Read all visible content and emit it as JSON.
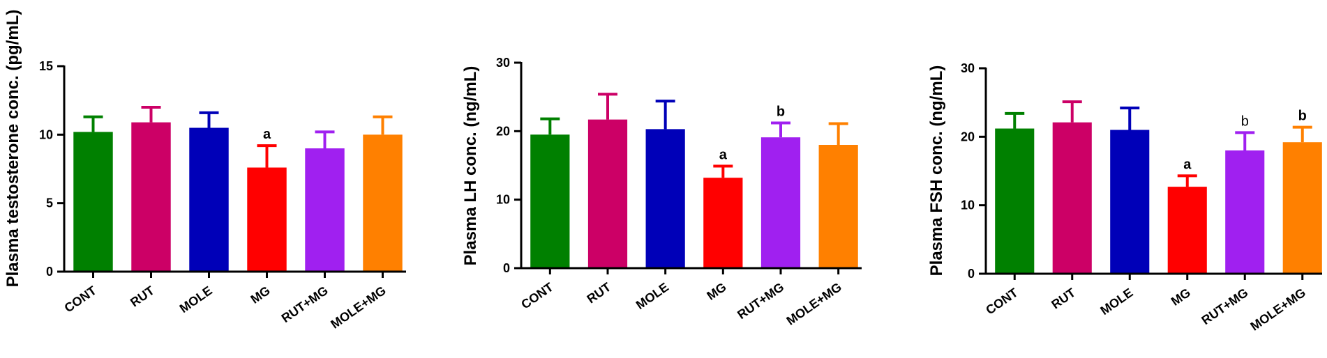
{
  "chart_data": [
    {
      "type": "bar",
      "ylabel": "Plasma testosterone conc. (pg/mL)",
      "categories": [
        "CONT",
        "RUT",
        "MOLE",
        "MG",
        "RUT+MG",
        "MOLE+MG"
      ],
      "values": [
        10.2,
        10.9,
        10.5,
        7.6,
        9.0,
        10.0
      ],
      "errors": [
        1.1,
        1.1,
        1.1,
        1.6,
        1.2,
        1.3
      ],
      "annotations": [
        "",
        "",
        "",
        "a",
        "",
        ""
      ],
      "annotation_weight": [
        "",
        "",
        "",
        "bold",
        "",
        ""
      ],
      "colors": [
        "#008000",
        "#cc0066",
        "#0000b8",
        "#ff0000",
        "#a020f0",
        "#ff8000"
      ],
      "ylim": [
        0,
        15
      ],
      "yticks": [
        0,
        5,
        10,
        15
      ]
    },
    {
      "type": "bar",
      "ylabel": "Plasma LH conc. (ng/mL)",
      "categories": [
        "CONT",
        "RUT",
        "MOLE",
        "MG",
        "RUT+MG",
        "MOLE+MG"
      ],
      "values": [
        19.5,
        21.7,
        20.3,
        13.2,
        19.1,
        18.0
      ],
      "errors": [
        2.3,
        3.7,
        4.1,
        1.7,
        2.1,
        3.1
      ],
      "annotations": [
        "",
        "",
        "",
        "a",
        "b",
        ""
      ],
      "annotation_weight": [
        "",
        "",
        "",
        "bold",
        "bold",
        ""
      ],
      "colors": [
        "#008000",
        "#cc0066",
        "#0000b8",
        "#ff0000",
        "#a020f0",
        "#ff8000"
      ],
      "ylim": [
        0,
        30
      ],
      "yticks": [
        0,
        10,
        20,
        30
      ]
    },
    {
      "type": "bar",
      "ylabel": "Plasma FSH conc. (ng/mL)",
      "categories": [
        "CONT",
        "RUT",
        "MOLE",
        "MG",
        "RUT+MG",
        "MOLE+MG"
      ],
      "values": [
        21.2,
        22.1,
        21.0,
        12.7,
        18.0,
        19.2
      ],
      "errors": [
        2.2,
        3.0,
        3.2,
        1.6,
        2.6,
        2.2
      ],
      "annotations": [
        "",
        "",
        "",
        "a",
        "b",
        "b"
      ],
      "annotation_weight": [
        "",
        "",
        "",
        "bold",
        "normal",
        "bold"
      ],
      "colors": [
        "#008000",
        "#cc0066",
        "#0000b8",
        "#ff0000",
        "#a020f0",
        "#ff8000"
      ],
      "ylim": [
        0,
        30
      ],
      "yticks": [
        0,
        10,
        20,
        30
      ]
    }
  ]
}
